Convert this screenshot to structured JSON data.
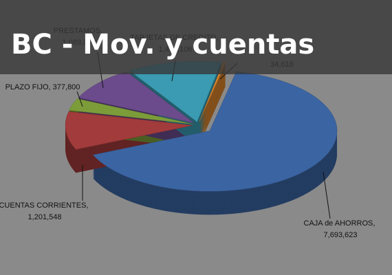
{
  "chart_data": {
    "type": "pie",
    "title": "BC - Mov. y cuentas",
    "categories": [
      "CAJA de AHORROS",
      "CUENTAS CORRIENTES",
      "PLAZO FIJO",
      "PRESTAMOS",
      "TARJETAS DE CREDITO",
      null
    ],
    "values": [
      7693623,
      1201548,
      377800,
      1089000,
      1410106,
      34618
    ],
    "value_labels": [
      "7,693,623",
      "1,201,548",
      "377,800",
      "1,089,000",
      "1,410,106",
      "34,618"
    ],
    "label_separator": ", ",
    "colors": [
      "#3b64a2",
      "#a23b3b",
      "#7c9c3a",
      "#6b4b8c",
      "#3a9bb2",
      "#d9832b"
    ]
  }
}
